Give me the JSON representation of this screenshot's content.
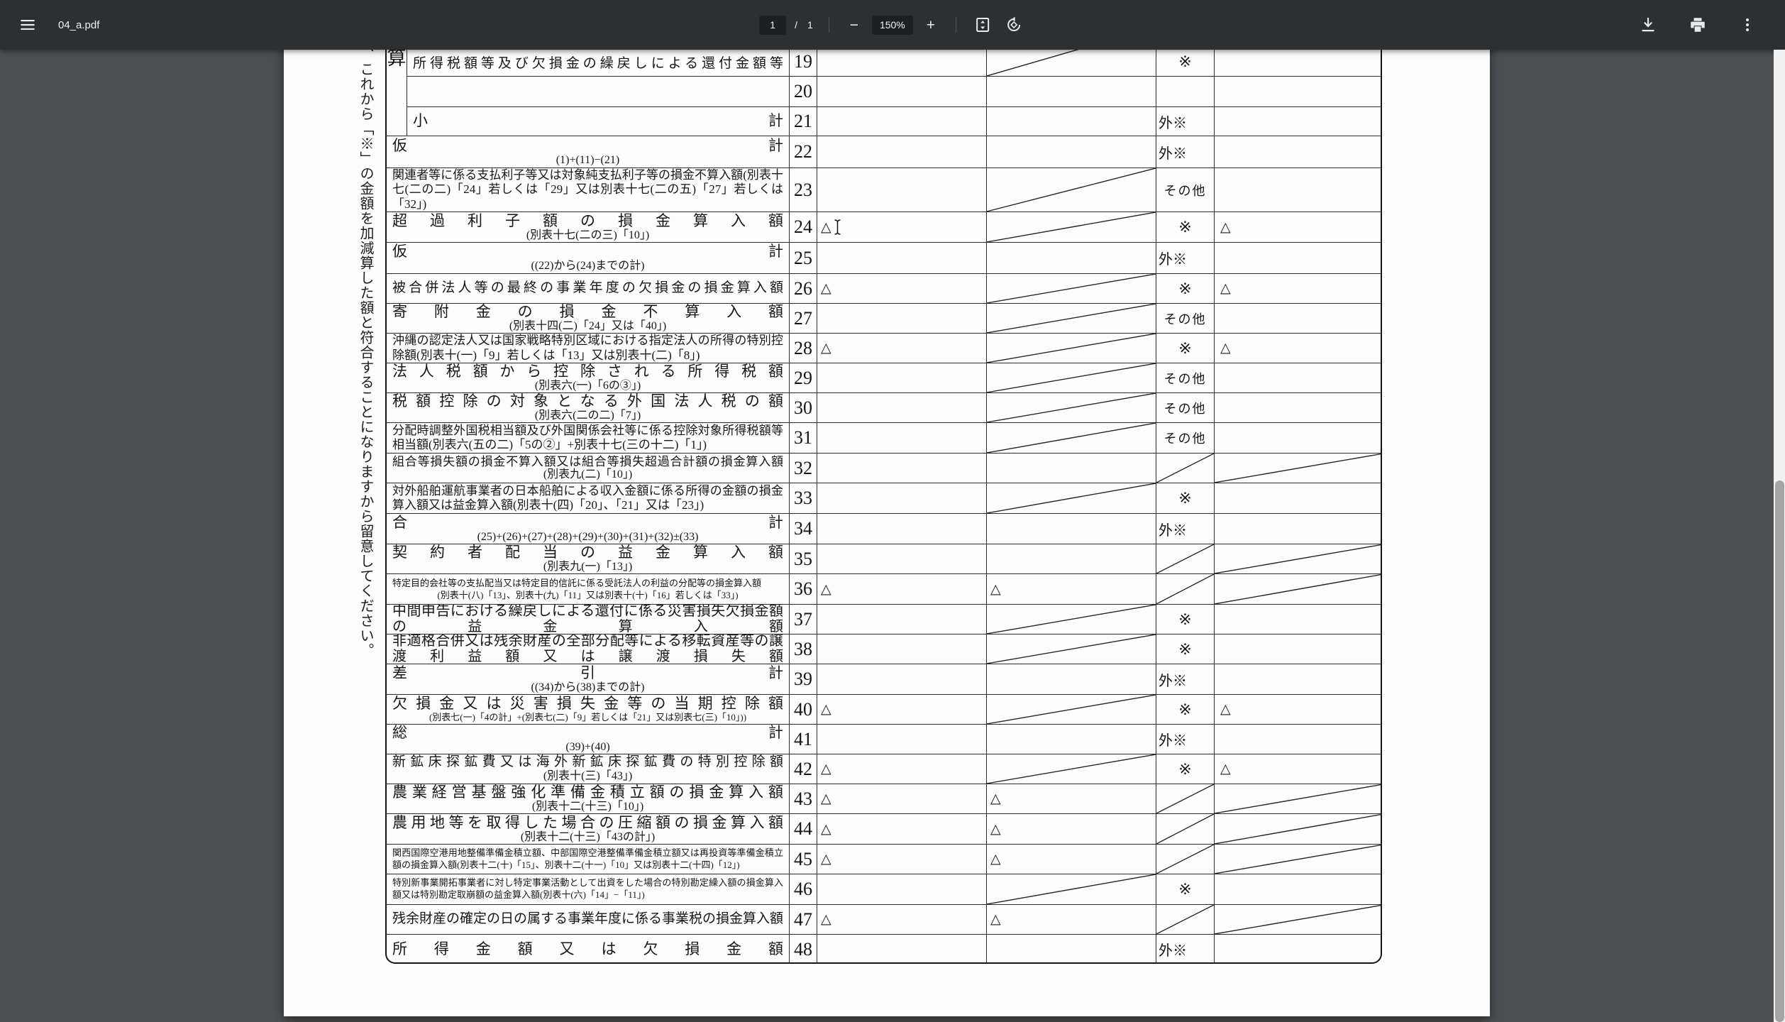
{
  "toolbar": {
    "title": "04_a.pdf",
    "page": {
      "current": "1",
      "separator": "/",
      "total": "1"
    },
    "zoom": {
      "minus_label": "−",
      "level": "150%",
      "plus_label": "+"
    }
  },
  "document": {
    "margin_note": "、これから「※」の金額を加減算した額と符合することになりますから留意してください。",
    "table": {
      "section_label": "算",
      "rows": [
        {
          "id": "19",
          "sec": true,
          "num": "19",
          "lines": [
            [
              "所得税額等及び欠損金の繰戻しによる還付金額等",
              "jsm"
            ]
          ],
          "c1": "",
          "c2": "diag",
          "c3": "※",
          "c4": ""
        },
        {
          "id": "20",
          "sec": true,
          "num": "20",
          "lines": [],
          "c1": "",
          "c2": "",
          "c3": "",
          "c4": ""
        },
        {
          "id": "21",
          "sec": true,
          "num": "21",
          "lines": [
            [
              "小計",
              "j"
            ]
          ],
          "c1": "",
          "c2": "",
          "c3": "外※",
          "c4": ""
        },
        {
          "id": "22",
          "num": "22",
          "lines": [
            [
              "仮計",
              "j"
            ],
            [
              "(1)+(11)−(21)",
              "cs"
            ]
          ],
          "c1": "",
          "c2": "",
          "c3": "外※",
          "c4": ""
        },
        {
          "id": "23",
          "num": "23",
          "lines": [
            [
              "関連者等に係る支払利子等又は対象純支払利子等の損金不算入額(別表十七(二の二)「24」若しくは「29」又は別表十七(二の五)「27」若しくは「32」)",
              "sm"
            ]
          ],
          "c1": "",
          "c2": "diag",
          "c3": "その他",
          "c4": ""
        },
        {
          "id": "24",
          "num": "24",
          "cursor": true,
          "lines": [
            [
              "超過利子額の損金算入額",
              "j"
            ],
            [
              "(別表十七(二の三)「10」)",
              "cs"
            ]
          ],
          "c1": "△",
          "c2": "diag",
          "c3": "※",
          "c4": "△"
        },
        {
          "id": "25",
          "num": "25",
          "lines": [
            [
              "仮計",
              "j"
            ],
            [
              "((22)から(24)までの計)",
              "cs"
            ]
          ],
          "c1": "",
          "c2": "",
          "c3": "外※",
          "c4": ""
        },
        {
          "id": "26",
          "num": "26",
          "lines": [
            [
              "被合併法人等の最終の事業年度の欠損金の損金算入額",
              "jsm"
            ]
          ],
          "c1": "△",
          "c2": "diag",
          "c3": "※",
          "c4": "△"
        },
        {
          "id": "27",
          "num": "27",
          "lines": [
            [
              "寄附金の損金不算入額",
              "j"
            ],
            [
              "(別表十四(二)「24」又は「40」)",
              "cs"
            ]
          ],
          "c1": "",
          "c2": "diag",
          "c3": "その他",
          "c4": ""
        },
        {
          "id": "28",
          "num": "28",
          "lines": [
            [
              "沖縄の認定法人又は国家戦略特別区域における指定法人の所得の特別控除額(別表十(一)「9」若しくは「13」又は別表十(二)「8」)",
              "sm"
            ]
          ],
          "c1": "△",
          "c2": "diag",
          "c3": "※",
          "c4": "△"
        },
        {
          "id": "29",
          "num": "29",
          "lines": [
            [
              "法人税額から控除される所得税額",
              "j"
            ],
            [
              "(別表六(一)「6の③」)",
              "cs"
            ]
          ],
          "c1": "",
          "c2": "diag",
          "c3": "その他",
          "c4": ""
        },
        {
          "id": "30",
          "num": "30",
          "lines": [
            [
              "税額控除の対象となる外国法人税の額",
              "j"
            ],
            [
              "(別表六(二の二)「7」)",
              "cs"
            ]
          ],
          "c1": "",
          "c2": "diag",
          "c3": "その他",
          "c4": ""
        },
        {
          "id": "31",
          "num": "31",
          "lines": [
            [
              "分配時調整外国税相当額及び外国関係会社等に係る控除対象所得税額等相当額(別表六(五の二)「5の②」+別表十七(三の十二)「1」)",
              "sm"
            ]
          ],
          "c1": "",
          "c2": "diag",
          "c3": "その他",
          "c4": ""
        },
        {
          "id": "32",
          "num": "32",
          "lines": [
            [
              "組合等損失額の損金不算入額又は組合等損失超過合計額の損金算入額",
              "jx"
            ],
            [
              "(別表九(二)「10」)",
              "cs"
            ]
          ],
          "c1": "",
          "c2": "",
          "c3": "diag",
          "c4": "diag"
        },
        {
          "id": "33",
          "num": "33",
          "lines": [
            [
              "対外船舶運航事業者の日本船舶による収入金額に係る所得の金額の損金算入額又は益金算入額(別表十(四)「20」、「21」又は「23」)",
              "sm"
            ]
          ],
          "c1": "",
          "c2": "diag",
          "c3": "※",
          "c4": ""
        },
        {
          "id": "34",
          "num": "34",
          "lines": [
            [
              "合計",
              "j"
            ],
            [
              "(25)+(26)+(27)+(28)+(29)+(30)+(31)+(32)±(33)",
              "cs"
            ]
          ],
          "c1": "",
          "c2": "",
          "c3": "外※",
          "c4": ""
        },
        {
          "id": "35",
          "num": "35",
          "lines": [
            [
              "契約者配当の益金算入額",
              "j"
            ],
            [
              "(別表九(一)「13」)",
              "cs"
            ]
          ],
          "c1": "",
          "c2": "",
          "c3": "diag",
          "c4": "diag"
        },
        {
          "id": "36",
          "num": "36",
          "lines": [
            [
              "特定目的会社等の支払配当又は特定目的信託に係る受託法人の利益の分配等の損金算入額",
              "ty"
            ],
            [
              "(別表十(八)「13」、別表十(九)「11」又は別表十(十)「16」若しくは「33」)",
              "ct"
            ]
          ],
          "c1": "△",
          "c2": "△",
          "c3": "diag",
          "c4": "diag"
        },
        {
          "id": "37",
          "num": "37",
          "lines": [
            [
              "中間申告における繰戻しによる還付に係る災害損失欠損金額の益金算入額",
              "jw"
            ]
          ],
          "c1": "",
          "c2": "diag",
          "c3": "※",
          "c4": ""
        },
        {
          "id": "38",
          "num": "38",
          "lines": [
            [
              "非適格合併又は残余財産の全部分配等による移転資産等の譲渡利益額又は譲渡損失額",
              "jw"
            ]
          ],
          "c1": "",
          "c2": "diag",
          "c3": "※",
          "c4": ""
        },
        {
          "id": "39",
          "num": "39",
          "lines": [
            [
              "差引計",
              "j"
            ],
            [
              "((34)から(38)までの計)",
              "cs"
            ]
          ],
          "c1": "",
          "c2": "",
          "c3": "外※",
          "c4": ""
        },
        {
          "id": "40",
          "num": "40",
          "lines": [
            [
              "欠損金又は災害損失金等の当期控除額",
              "j"
            ],
            [
              "(別表七(一)「4の計」+(別表七(二)「9」若しくは「21」又は別表七(三)「10」))",
              "ct"
            ]
          ],
          "c1": "△",
          "c2": "diag",
          "c3": "※",
          "c4": "△"
        },
        {
          "id": "41",
          "num": "41",
          "lines": [
            [
              "総計",
              "j"
            ],
            [
              "(39)+(40)",
              "cs"
            ]
          ],
          "c1": "",
          "c2": "",
          "c3": "外※",
          "c4": ""
        },
        {
          "id": "42",
          "num": "42",
          "lines": [
            [
              "新鉱床探鉱費又は海外新鉱床探鉱費の特別控除額",
              "jsm"
            ],
            [
              "(別表十(三)「43」)",
              "cs"
            ]
          ],
          "c1": "△",
          "c2": "diag",
          "c3": "※",
          "c4": "△"
        },
        {
          "id": "43",
          "num": "43",
          "lines": [
            [
              "農業経営基盤強化準備金積立額の損金算入額",
              "j"
            ],
            [
              "(別表十二(十三)「10」)",
              "cs"
            ]
          ],
          "c1": "△",
          "c2": "△",
          "c3": "diag",
          "c4": "diag"
        },
        {
          "id": "44",
          "num": "44",
          "lines": [
            [
              "農用地等を取得した場合の圧縮額の損金算入額",
              "j"
            ],
            [
              "(別表十二(十三)「43の計」)",
              "cs"
            ]
          ],
          "c1": "△",
          "c2": "△",
          "c3": "diag",
          "c4": "diag"
        },
        {
          "id": "45",
          "num": "45",
          "lines": [
            [
              "関西国際空港用地整備準備金積立額、中部国際空港整備準備金積立額又は再投資等準備金積立額の損金算入額(別表十二(十)「15」、別表十二(十一)「10」又は別表十二(十四)「12」)",
              "ty"
            ]
          ],
          "c1": "△",
          "c2": "△",
          "c3": "diag",
          "c4": "diag"
        },
        {
          "id": "46",
          "num": "46",
          "lines": [
            [
              "特別新事業開拓事業者に対し特定事業活動として出資をした場合の特別勘定繰入額の損金算入額又は特別勘定取崩額の益金算入額(別表十(六)「14」−「11」)",
              "ty"
            ]
          ],
          "c1": "",
          "c2": "diag",
          "c3": "※",
          "c4": ""
        },
        {
          "id": "47",
          "num": "47",
          "lines": [
            [
              "残余財産の確定の日の属する事業年度に係る事業税の損金算入額",
              "jsm"
            ]
          ],
          "c1": "△",
          "c2": "△",
          "c3": "diag",
          "c4": "diag"
        },
        {
          "id": "48",
          "num": "48",
          "lines": [
            [
              "所得金額又は欠損金額",
              "j"
            ]
          ],
          "c1": "",
          "c2": "",
          "c3": "外※",
          "c4": ""
        }
      ]
    }
  }
}
